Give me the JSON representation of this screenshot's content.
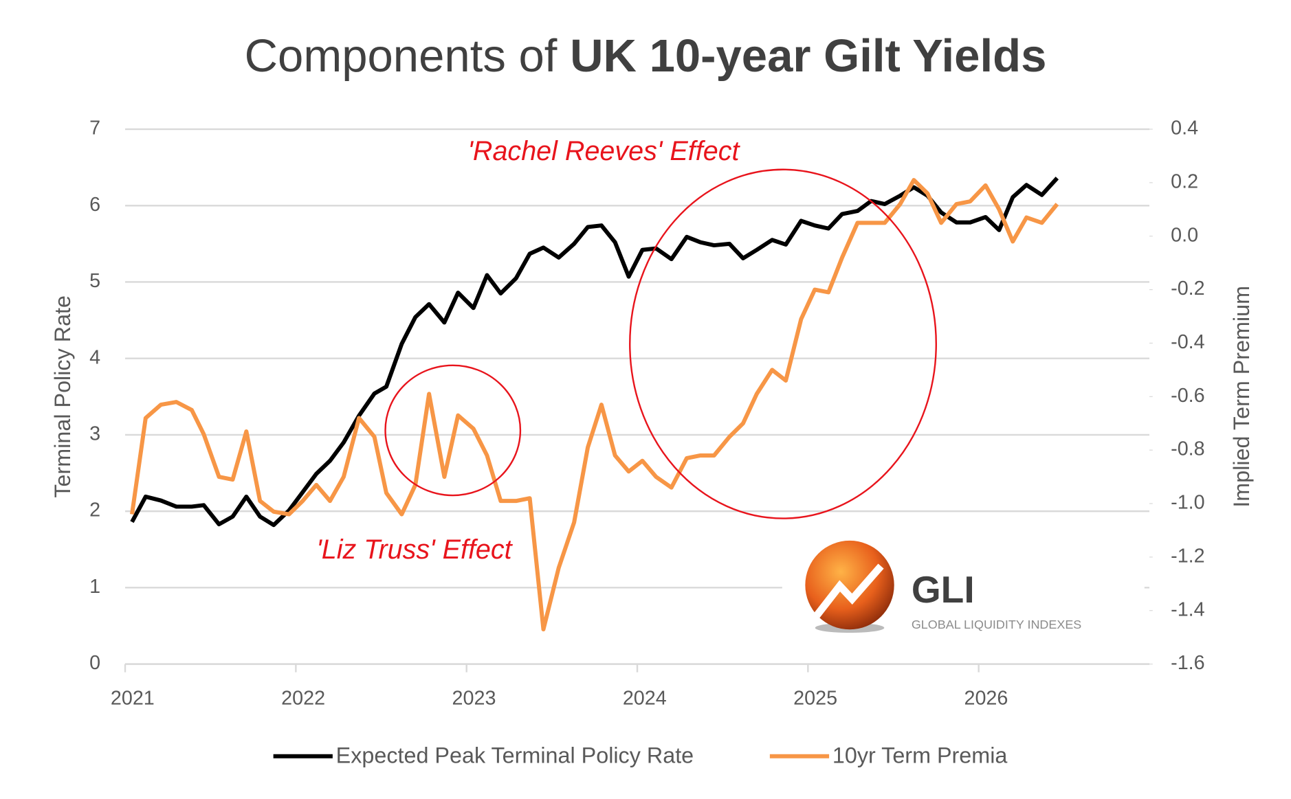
{
  "chart_data": {
    "type": "line",
    "title": [
      "Components of",
      "UK 10-year Gilt Yields"
    ],
    "y_label": "Terminal Policy Rate",
    "y2_label": "Implied Term Premium",
    "annotations": [
      "'Rachel  Reeves' Effect",
      "'Liz Truss' Effect"
    ],
    "logo": {
      "name": "GLI",
      "tagline": "GLOBAL LIQUIDITY INDEXES"
    },
    "legend": "bottom",
    "grid": true,
    "xlim": [
      2021,
      2027
    ],
    "xticks": [
      2021,
      2022,
      2023,
      2024,
      2025,
      2026
    ],
    "ylim": [
      0,
      7
    ],
    "yticks": [
      0,
      1,
      2,
      3,
      4,
      5,
      6,
      7
    ],
    "y2lim": [
      -1.6,
      0.4
    ],
    "y2ticks": [
      -1.6,
      -1.4,
      -1.2,
      {
        "value": -1,
        "label": "-1.0"
      },
      -0.8,
      -0.6,
      -0.4,
      -0.2,
      {
        "value": 0,
        "label": "0.0"
      },
      0.2,
      0.4
    ],
    "x": [
      2021.04,
      2021.12,
      2021.21,
      2021.3,
      2021.39,
      2021.46,
      2021.55,
      2021.63,
      2021.71,
      2021.79,
      2021.87,
      2021.96,
      2022.04,
      2022.12,
      2022.2,
      2022.28,
      2022.37,
      2022.46,
      2022.53,
      2022.62,
      2022.7,
      2022.78,
      2022.87,
      2022.95,
      2023.04,
      2023.12,
      2023.2,
      2023.29,
      2023.37,
      2023.45,
      2023.54,
      2023.63,
      2023.71,
      2023.79,
      2023.87,
      2023.95,
      2024.03,
      2024.11,
      2024.2,
      2024.29,
      2024.37,
      2024.45,
      2024.54,
      2024.62,
      2024.7,
      2024.79,
      2024.87,
      2024.96,
      2025.04,
      2025.12,
      2025.2,
      2025.29,
      2025.37,
      2025.45,
      2025.54,
      2025.62,
      2025.7,
      2025.78,
      2025.87,
      2025.95,
      2026.04,
      2026.12,
      2026.2,
      2026.28,
      2026.37,
      2026.46
    ],
    "series": [
      {
        "name": "Expected Peak Terminal Policy Rate",
        "color": "#000000",
        "values": [
          1.86,
          2.19,
          2.14,
          2.06,
          2.06,
          2.08,
          1.83,
          1.93,
          2.19,
          1.93,
          1.82,
          2.01,
          2.25,
          2.49,
          2.66,
          2.9,
          3.25,
          3.54,
          3.63,
          4.19,
          4.54,
          4.71,
          4.47,
          4.86,
          4.66,
          5.09,
          4.85,
          5.05,
          5.37,
          5.45,
          5.32,
          5.5,
          5.72,
          5.74,
          5.52,
          5.07,
          5.42,
          5.44,
          5.3,
          5.59,
          5.52,
          5.48,
          5.5,
          5.31,
          5.42,
          5.55,
          5.49,
          5.8,
          5.74,
          5.7,
          5.89,
          5.93,
          6.06,
          6.02,
          6.13,
          6.24,
          6.13,
          5.91,
          5.78,
          5.78,
          5.85,
          5.68,
          6.11,
          6.27,
          6.14,
          6.36
        ]
      },
      {
        "name": "10yr Term Premia",
        "color": "#f79646",
        "axis": "y2",
        "values": [
          -1.04,
          -0.68,
          -0.63,
          -0.62,
          -0.65,
          -0.74,
          -0.9,
          -0.91,
          -0.73,
          -0.99,
          -1.03,
          -1.04,
          -0.99,
          -0.93,
          -0.99,
          -0.9,
          -0.68,
          -0.75,
          -0.96,
          -1.04,
          -0.93,
          -0.59,
          -0.9,
          -0.67,
          -0.72,
          -0.82,
          -0.99,
          -0.99,
          -0.98,
          -1.47,
          -1.24,
          -1.07,
          -0.79,
          -0.63,
          -0.82,
          -0.88,
          -0.84,
          -0.9,
          -0.94,
          -0.83,
          -0.82,
          -0.82,
          -0.75,
          -0.7,
          -0.59,
          -0.5,
          -0.54,
          -0.31,
          -0.2,
          -0.21,
          -0.08,
          0.05,
          0.05,
          0.05,
          0.12,
          0.21,
          0.16,
          0.05,
          0.12,
          0.13,
          0.19,
          0.1,
          -0.02,
          0.07,
          0.05,
          0.12
        ]
      }
    ]
  }
}
